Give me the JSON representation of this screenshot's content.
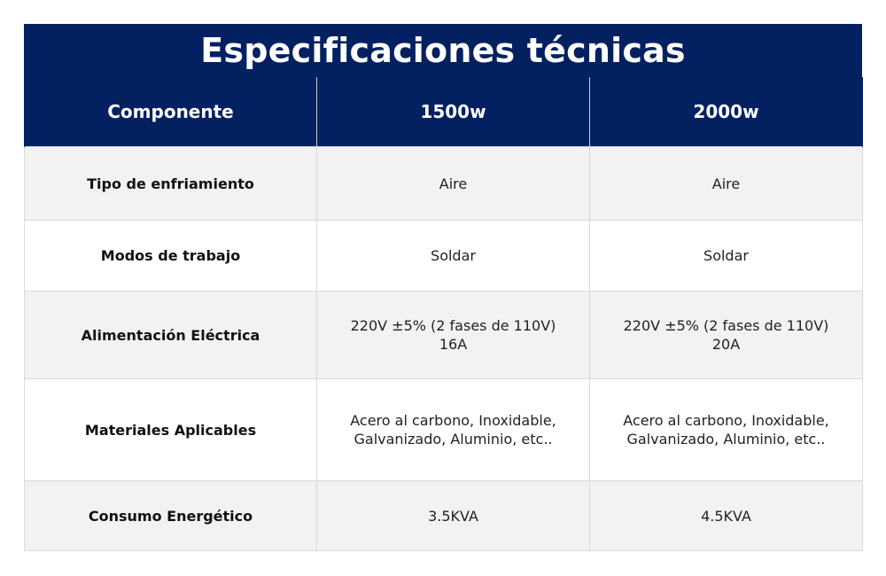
{
  "title": "Especificaciones técnicas",
  "header": {
    "col1": "Componente",
    "col2": "1500w",
    "col3": "2000w"
  },
  "rows": [
    {
      "label": "Tipo de enfriamiento",
      "v1500": [
        "Aire"
      ],
      "v2000": [
        "Aire"
      ]
    },
    {
      "label": "Modos de trabajo",
      "v1500": [
        "Soldar"
      ],
      "v2000": [
        "Soldar"
      ]
    },
    {
      "label": "Alimentación Eléctrica",
      "v1500": [
        "220V ±5% (2 fases de 110V)",
        "16A"
      ],
      "v2000": [
        "220V ±5% (2 fases de 110V)",
        "20A"
      ]
    },
    {
      "label": "Materiales Aplicables",
      "v1500": [
        "Acero al carbono, Inoxidable,",
        "Galvanizado, Aluminio, etc.."
      ],
      "v2000": [
        "Acero al carbono, Inoxidable,",
        "Galvanizado, Aluminio, etc.."
      ]
    },
    {
      "label": "Consumo Energético",
      "v1500": [
        "3.5KVA"
      ],
      "v2000": [
        "4.5KVA"
      ]
    }
  ]
}
